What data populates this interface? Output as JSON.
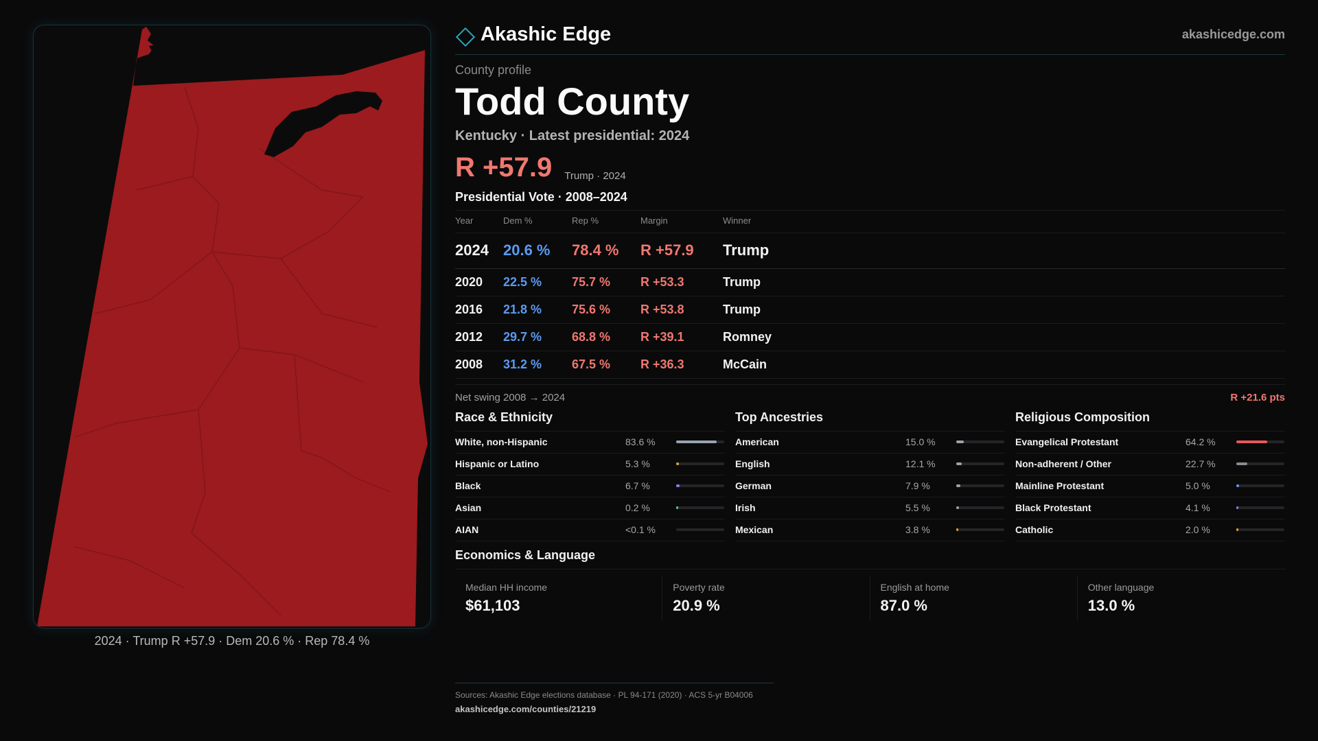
{
  "map": {
    "caption": "2024 · Trump R +57.9 · Dem 20.6 % · Rep 78.4 %",
    "fill_color": "#9b1b1e"
  },
  "header": {
    "brand": "Akashic Edge",
    "brand_icon": "diamond-icon",
    "site_url": "akashicedge.com"
  },
  "profile": {
    "eyebrow": "County profile",
    "title": "Todd County",
    "subtitle": "Kentucky · Latest presidential: 2024",
    "margin": "R +57.9",
    "margin_note": "Trump · 2024"
  },
  "votes": {
    "title": "Presidential Vote · 2008–2024",
    "headers": [
      "Year",
      "Dem %",
      "Rep %",
      "Margin",
      "Winner"
    ],
    "rows": [
      {
        "year": "2024",
        "dem": "20.6 %",
        "rep": "78.4 %",
        "margin": "R +57.9",
        "winner": "Trump"
      },
      {
        "year": "2020",
        "dem": "22.5 %",
        "rep": "75.7 %",
        "margin": "R +53.3",
        "winner": "Trump"
      },
      {
        "year": "2016",
        "dem": "21.8 %",
        "rep": "75.6 %",
        "margin": "R +53.8",
        "winner": "Trump"
      },
      {
        "year": "2012",
        "dem": "29.7 %",
        "rep": "68.8 %",
        "margin": "R +39.1",
        "winner": "Romney"
      },
      {
        "year": "2008",
        "dem": "31.2 %",
        "rep": "67.5 %",
        "margin": "R +36.3",
        "winner": "McCain"
      }
    ],
    "swing_label": "Net swing 2008 → 2024",
    "swing_value": "R +21.6 pts"
  },
  "demographics": [
    {
      "title": "Race & Ethnicity",
      "rows": [
        {
          "label": "White, non-Hispanic",
          "pct": "83.6 %",
          "share": 0.836,
          "color": "#9aa3b0"
        },
        {
          "label": "Hispanic or Latino",
          "pct": "5.3 %",
          "share": 0.053,
          "color": "#e0a030"
        },
        {
          "label": "Black",
          "pct": "6.7 %",
          "share": 0.067,
          "color": "#8c7cf0"
        },
        {
          "label": "Asian",
          "pct": "0.2 %",
          "share": 0.002,
          "color": "#5fc0a0"
        },
        {
          "label": "AIAN",
          "pct": "<0.1 %",
          "share": 0.0,
          "color": "#c0c0c0"
        }
      ]
    },
    {
      "title": "Top Ancestries",
      "rows": [
        {
          "label": "American",
          "pct": "15.0 %",
          "share": 0.15,
          "color": "#a0a0a8"
        },
        {
          "label": "English",
          "pct": "12.1 %",
          "share": 0.121,
          "color": "#a0a0a8"
        },
        {
          "label": "German",
          "pct": "7.9 %",
          "share": 0.079,
          "color": "#a0a0a8"
        },
        {
          "label": "Irish",
          "pct": "5.5 %",
          "share": 0.055,
          "color": "#a0a0a8"
        },
        {
          "label": "Mexican",
          "pct": "3.8 %",
          "share": 0.038,
          "color": "#e0a030"
        }
      ]
    },
    {
      "title": "Religious Composition",
      "rows": [
        {
          "label": "Evangelical Protestant",
          "pct": "64.2 %",
          "share": 0.642,
          "color": "#e8585a"
        },
        {
          "label": "Non-adherent / Other",
          "pct": "22.7 %",
          "share": 0.227,
          "color": "#8a8a92"
        },
        {
          "label": "Mainline Protestant",
          "pct": "5.0 %",
          "share": 0.05,
          "color": "#5b9bf0"
        },
        {
          "label": "Black Protestant",
          "pct": "4.1 %",
          "share": 0.041,
          "color": "#8c7cf0"
        },
        {
          "label": "Catholic",
          "pct": "2.0 %",
          "share": 0.02,
          "color": "#e0a030"
        }
      ]
    }
  ],
  "economics": {
    "title": "Economics & Language",
    "cells": [
      {
        "label": "Median HH income",
        "value": "$61,103"
      },
      {
        "label": "Poverty rate",
        "value": "20.9 %"
      },
      {
        "label": "English at home",
        "value": "87.0 %"
      },
      {
        "label": "Other language",
        "value": "13.0 %"
      }
    ]
  },
  "footer": {
    "sources": "Sources: Akashic Edge elections database · PL 94-171 (2020) · ACS 5-yr B04006",
    "link": "akashicedge.com/counties/21219"
  }
}
